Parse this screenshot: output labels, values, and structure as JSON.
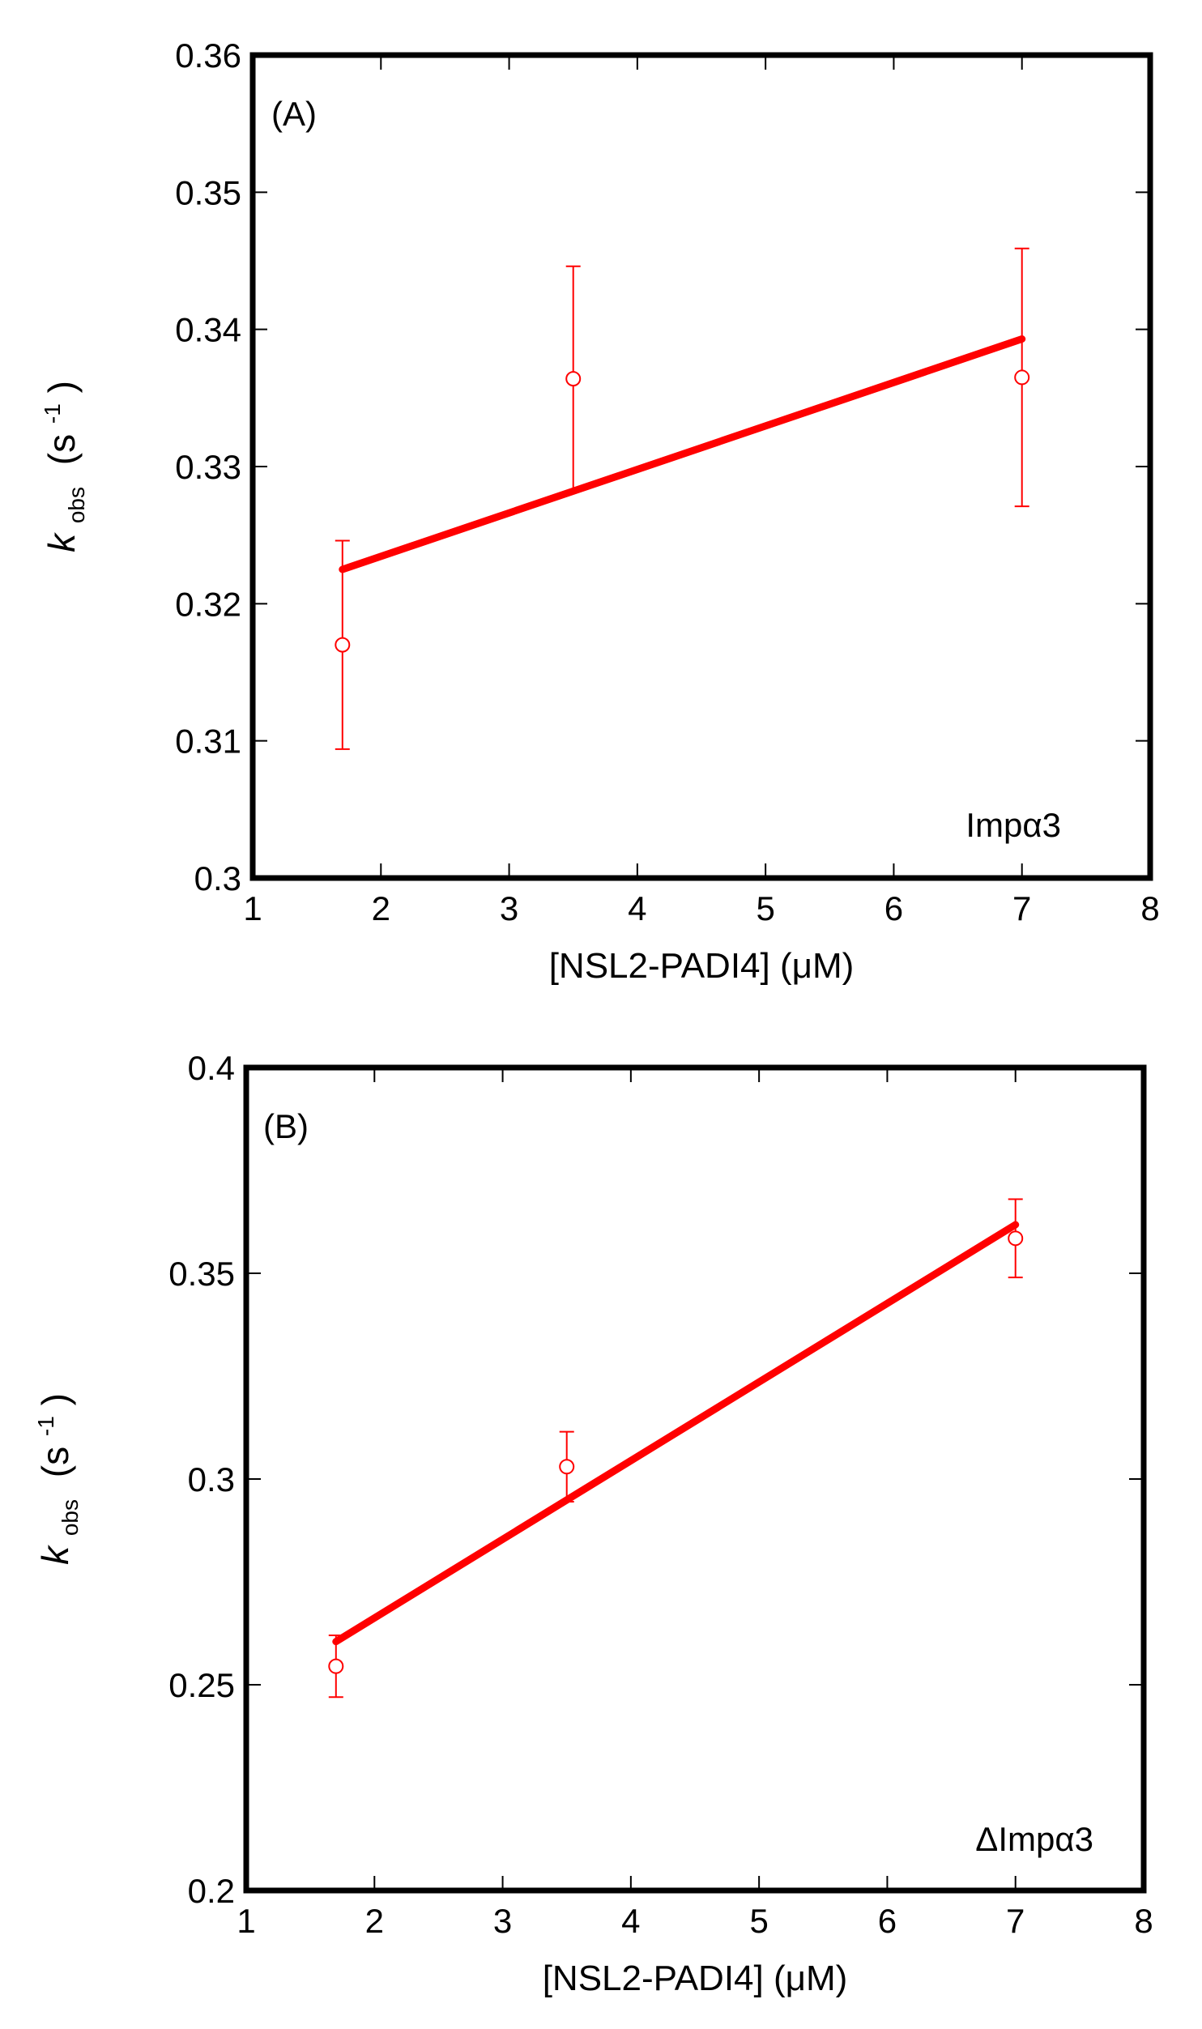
{
  "figure": {
    "accent_color": "#ff0000",
    "axis_color": "#000000"
  },
  "chart_data": [
    {
      "panel_label": "(A)",
      "type": "scatter",
      "series_label": "Impα3",
      "xlabel": "[NSL2-PADI4] (μM)",
      "ylabel_main": "k",
      "ylabel_sub": "obs",
      "ylabel_unit_open": "(s",
      "ylabel_unit_exp": "-1",
      "ylabel_unit_close": ")",
      "xlim": [
        1,
        8
      ],
      "ylim": [
        0.3,
        0.36
      ],
      "xticks": [
        1,
        2,
        3,
        4,
        5,
        6,
        7,
        8
      ],
      "xtick_labels": [
        "1",
        "2",
        "3",
        "4",
        "5",
        "6",
        "7",
        "8"
      ],
      "yticks": [
        0.3,
        0.31,
        0.32,
        0.33,
        0.34,
        0.35,
        0.36
      ],
      "ytick_labels": [
        "0.3",
        "0.31",
        "0.32",
        "0.33",
        "0.34",
        "0.35",
        "0.36"
      ],
      "points": [
        {
          "x": 1.7,
          "y": 0.317,
          "err": 0.0076
        },
        {
          "x": 3.5,
          "y": 0.3364,
          "err": 0.0082
        },
        {
          "x": 7.0,
          "y": 0.3365,
          "err": 0.0094
        }
      ],
      "fit_line": {
        "x": [
          1.7,
          7.0
        ],
        "y": [
          0.3225,
          0.3393
        ]
      },
      "color": "#ff0000"
    },
    {
      "panel_label": "(B)",
      "type": "scatter",
      "series_label": "ΔImpα3",
      "xlabel": "[NSL2-PADI4] (μM)",
      "ylabel_main": "k",
      "ylabel_sub": "obs",
      "ylabel_unit_open": "(s",
      "ylabel_unit_exp": "-1",
      "ylabel_unit_close": ")",
      "xlim": [
        1,
        8
      ],
      "ylim": [
        0.2,
        0.4
      ],
      "xticks": [
        1,
        2,
        3,
        4,
        5,
        6,
        7,
        8
      ],
      "xtick_labels": [
        "1",
        "2",
        "3",
        "4",
        "5",
        "6",
        "7",
        "8"
      ],
      "yticks": [
        0.2,
        0.25,
        0.3,
        0.35,
        0.4
      ],
      "ytick_labels": [
        "0.2",
        "0.25",
        "0.3",
        "0.35",
        "0.4"
      ],
      "points": [
        {
          "x": 1.7,
          "y": 0.2545,
          "err": 0.0075
        },
        {
          "x": 3.5,
          "y": 0.303,
          "err": 0.0085
        },
        {
          "x": 7.0,
          "y": 0.3585,
          "err": 0.0095
        }
      ],
      "fit_line": {
        "x": [
          1.7,
          7.0
        ],
        "y": [
          0.2605,
          0.3618
        ]
      },
      "color": "#ff0000"
    }
  ]
}
